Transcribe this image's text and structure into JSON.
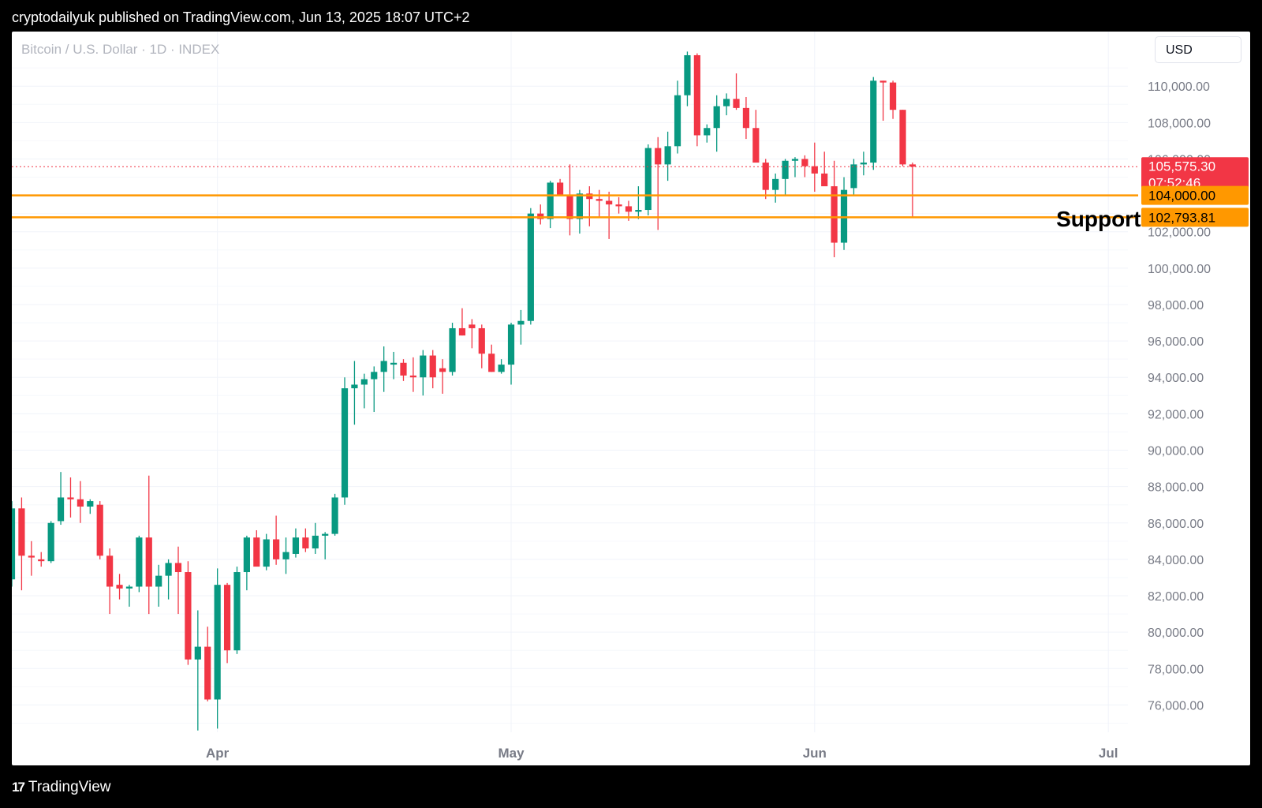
{
  "header": {
    "publisher": "cryptodailyuk published on TradingView.com, Jun 13, 2025 18:07 UTC+2"
  },
  "chart": {
    "symbol": "Bitcoin / U.S. Dollar · 1D · INDEX",
    "currency": "USD"
  },
  "footer": {
    "brand": "TradingView",
    "logo_icon": "tradingview-logo-icon"
  },
  "colors": {
    "up": "#089981",
    "down": "#f23645",
    "support": "#ff9800",
    "grid": "#f0f3fa",
    "axis_text": "#787b86"
  },
  "chart_data": {
    "type": "candlestick",
    "ylim": [
      74500,
      113000
    ],
    "yticks": [
      76000,
      78000,
      80000,
      82000,
      84000,
      86000,
      88000,
      90000,
      92000,
      94000,
      96000,
      98000,
      100000,
      102000,
      106000,
      108000,
      110000
    ],
    "ytick_labels": [
      "76,000.00",
      "78,000.00",
      "80,000.00",
      "82,000.00",
      "84,000.00",
      "86,000.00",
      "88,000.00",
      "90,000.00",
      "92,000.00",
      "94,000.00",
      "96,000.00",
      "98,000.00",
      "100,000.00",
      "102,000.00",
      "106,000.00",
      "108,000.00",
      "110,000.00"
    ],
    "xticks": [
      {
        "label": "Apr",
        "date": "2025-04-01"
      },
      {
        "label": "May",
        "date": "2025-05-01"
      },
      {
        "label": "Jun",
        "date": "2025-06-01"
      },
      {
        "label": "Jul",
        "date": "2025-07-01"
      }
    ],
    "x_domain": [
      "2025-03-11",
      "2025-07-03"
    ],
    "candles": [
      [
        "2025-03-11",
        82900,
        87200,
        82500,
        86800
      ],
      [
        "2025-03-12",
        86800,
        87400,
        82300,
        84200
      ],
      [
        "2025-03-13",
        84200,
        85000,
        83100,
        84100
      ],
      [
        "2025-03-14",
        84000,
        84400,
        83600,
        83900
      ],
      [
        "2025-03-15",
        83900,
        86100,
        83800,
        86000
      ],
      [
        "2025-03-16",
        86100,
        88800,
        85900,
        87400
      ],
      [
        "2025-03-17",
        87400,
        88500,
        86300,
        87300
      ],
      [
        "2025-03-18",
        87300,
        88300,
        86000,
        86900
      ],
      [
        "2025-03-19",
        86900,
        87300,
        86500,
        87200
      ],
      [
        "2025-03-20",
        87000,
        87200,
        84000,
        84200
      ],
      [
        "2025-03-21",
        84200,
        84600,
        81000,
        82500
      ],
      [
        "2025-03-22",
        82600,
        83200,
        81800,
        82400
      ],
      [
        "2025-03-23",
        82400,
        82600,
        81400,
        82500
      ],
      [
        "2025-03-24",
        82500,
        85300,
        82200,
        85200
      ],
      [
        "2025-03-25",
        85200,
        88600,
        81000,
        82500
      ],
      [
        "2025-03-26",
        82500,
        83700,
        81400,
        83100
      ],
      [
        "2025-03-27",
        83100,
        84000,
        81800,
        83800
      ],
      [
        "2025-03-28",
        83800,
        84700,
        81000,
        83300
      ],
      [
        "2025-03-29",
        83300,
        83900,
        78200,
        78500
      ],
      [
        "2025-03-30",
        78500,
        81200,
        74600,
        79200
      ],
      [
        "2025-03-31",
        79200,
        80300,
        76200,
        76300
      ],
      [
        "2025-04-01",
        76300,
        83500,
        74700,
        82600
      ],
      [
        "2025-04-02",
        82600,
        82700,
        78300,
        79000
      ],
      [
        "2025-04-03",
        79000,
        83600,
        78800,
        83300
      ],
      [
        "2025-04-04",
        83300,
        85300,
        82300,
        85200
      ],
      [
        "2025-04-05",
        85200,
        85600,
        83800,
        83600
      ],
      [
        "2025-04-06",
        83600,
        85400,
        83400,
        85100
      ],
      [
        "2025-04-07",
        85100,
        86400,
        83700,
        84000
      ],
      [
        "2025-04-08",
        84000,
        85200,
        83200,
        84400
      ],
      [
        "2025-04-09",
        84300,
        85700,
        84100,
        85200
      ],
      [
        "2025-04-10",
        85200,
        85700,
        84400,
        84600
      ],
      [
        "2025-04-11",
        84600,
        86000,
        84300,
        85300
      ],
      [
        "2025-04-12",
        85300,
        85500,
        84000,
        85400
      ],
      [
        "2025-04-13",
        85400,
        87600,
        85300,
        87400
      ],
      [
        "2025-04-14",
        87400,
        94000,
        87000,
        93400
      ],
      [
        "2025-04-15",
        93400,
        94900,
        91400,
        93600
      ],
      [
        "2025-04-16",
        93600,
        94200,
        92300,
        93900
      ],
      [
        "2025-04-17",
        93900,
        94600,
        92100,
        94300
      ],
      [
        "2025-04-18",
        94300,
        95700,
        93200,
        94900
      ],
      [
        "2025-04-19",
        94700,
        95400,
        93900,
        94800
      ],
      [
        "2025-04-20",
        94800,
        95000,
        93800,
        94100
      ],
      [
        "2025-04-21",
        94100,
        95100,
        93200,
        94000
      ],
      [
        "2025-04-22",
        94000,
        95500,
        93000,
        95200
      ],
      [
        "2025-04-23",
        95200,
        95500,
        93400,
        94000
      ],
      [
        "2025-04-24",
        94500,
        95000,
        93100,
        94300
      ],
      [
        "2025-04-25",
        94300,
        97000,
        94100,
        96700
      ],
      [
        "2025-04-26",
        96700,
        97800,
        96300,
        96300
      ],
      [
        "2025-04-27",
        96900,
        97200,
        95600,
        96700
      ],
      [
        "2025-04-28",
        96700,
        96900,
        94500,
        95300
      ],
      [
        "2025-04-29",
        95300,
        95800,
        94300,
        94300
      ],
      [
        "2025-04-30",
        94300,
        95000,
        94200,
        94700
      ],
      [
        "2025-05-01",
        94700,
        97000,
        93600,
        96900
      ],
      [
        "2025-05-02",
        96900,
        97700,
        95800,
        97100
      ],
      [
        "2025-05-03",
        97100,
        103300,
        96900,
        103000
      ],
      [
        "2025-05-04",
        103000,
        103500,
        102400,
        102700
      ],
      [
        "2025-05-05",
        102700,
        104800,
        102200,
        104700
      ],
      [
        "2025-05-06",
        104700,
        104900,
        104000,
        104000
      ],
      [
        "2025-05-07",
        104000,
        105700,
        101800,
        102700
      ],
      [
        "2025-05-08",
        102700,
        104300,
        101900,
        104100
      ],
      [
        "2025-05-09",
        104100,
        104500,
        102300,
        103800
      ],
      [
        "2025-05-10",
        103800,
        104300,
        102800,
        103700
      ],
      [
        "2025-05-11",
        103700,
        104200,
        101600,
        103500
      ],
      [
        "2025-05-12",
        103500,
        103900,
        103000,
        103400
      ],
      [
        "2025-05-13",
        103400,
        103700,
        102600,
        103100
      ],
      [
        "2025-05-14",
        103100,
        104500,
        102700,
        103200
      ],
      [
        "2025-05-15",
        103200,
        106800,
        102900,
        106600
      ],
      [
        "2025-05-16",
        106600,
        107200,
        102100,
        105700
      ],
      [
        "2025-05-17",
        105700,
        107500,
        104800,
        106700
      ],
      [
        "2025-05-18",
        106700,
        110300,
        106300,
        109500
      ],
      [
        "2025-05-19",
        109500,
        111900,
        108900,
        111700
      ],
      [
        "2025-05-20",
        111700,
        111800,
        106700,
        107300
      ],
      [
        "2025-05-21",
        107300,
        107900,
        106900,
        107700
      ],
      [
        "2025-05-22",
        107700,
        109500,
        106400,
        108900
      ],
      [
        "2025-05-23",
        108900,
        109600,
        108400,
        109300
      ],
      [
        "2025-05-24",
        109300,
        110700,
        108700,
        108800
      ],
      [
        "2025-05-25",
        108800,
        109400,
        107100,
        107700
      ],
      [
        "2025-05-26",
        107700,
        108700,
        106100,
        105800
      ],
      [
        "2025-05-27",
        105800,
        106000,
        103800,
        104300
      ],
      [
        "2025-05-28",
        104300,
        105200,
        103600,
        104900
      ],
      [
        "2025-05-29",
        104900,
        106000,
        104000,
        105900
      ],
      [
        "2025-05-30",
        105900,
        106100,
        105000,
        106000
      ],
      [
        "2025-05-31",
        106000,
        106200,
        105000,
        105600
      ],
      [
        "2025-06-01",
        105600,
        106900,
        104200,
        105200
      ],
      [
        "2025-06-02",
        105200,
        106400,
        104600,
        104500
      ],
      [
        "2025-06-03",
        104500,
        105900,
        100600,
        101400
      ],
      [
        "2025-06-04",
        101400,
        105000,
        101000,
        104300
      ],
      [
        "2025-06-05",
        104400,
        106000,
        104000,
        105700
      ],
      [
        "2025-06-06",
        105700,
        106400,
        105100,
        105800
      ],
      [
        "2025-06-07",
        105800,
        110500,
        105400,
        110300
      ],
      [
        "2025-06-08",
        110300,
        110300,
        108100,
        110200
      ],
      [
        "2025-06-09",
        110200,
        110300,
        108200,
        108700
      ],
      [
        "2025-06-10",
        108700,
        108700,
        105600,
        105700
      ],
      [
        "2025-06-11",
        105700,
        105800,
        102800,
        105575.3
      ]
    ],
    "support_levels": [
      104000,
      102793.81
    ],
    "support_labels": [
      "104,000.00",
      "102,793.81"
    ],
    "annotation": "Support",
    "last_price": 105575.3,
    "last_price_label": "105,575.30",
    "countdown": "07:52:46"
  }
}
